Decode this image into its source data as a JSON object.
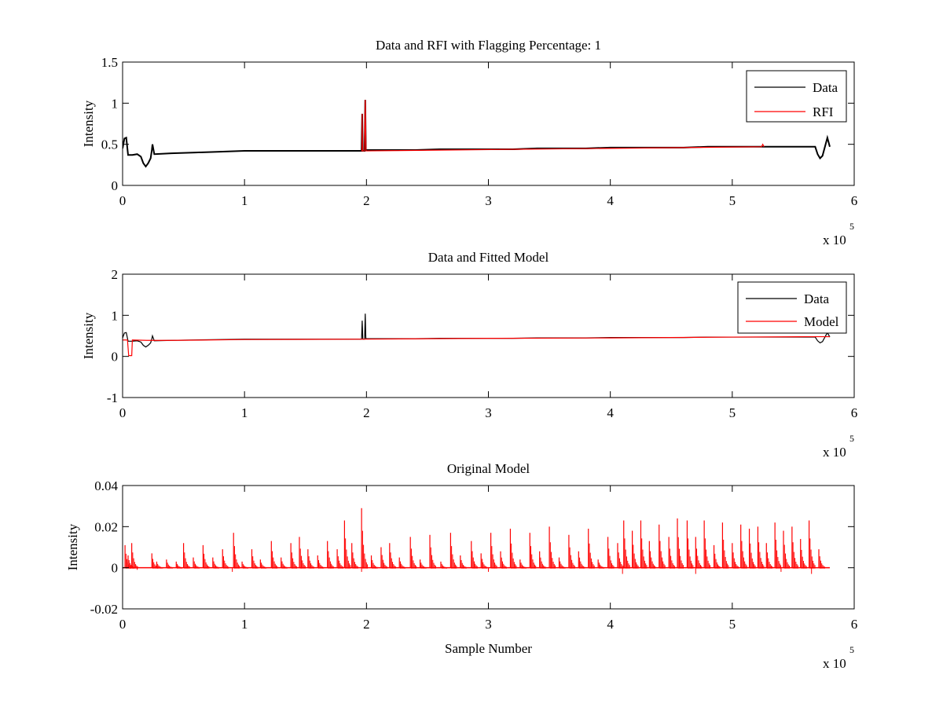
{
  "colors": {
    "data": "#000000",
    "rfi": "#ff0000",
    "model": "#ff0000",
    "axes": "#000000",
    "background": "#ffffff"
  },
  "chart_data": [
    {
      "type": "line",
      "title": "Data and RFI with Flagging Percentage: 1",
      "xlabel": "",
      "ylabel": "Intensity",
      "xlim": [
        0,
        600000
      ],
      "ylim": [
        0,
        1.5
      ],
      "x_exponent_label": "x 10",
      "x_exponent_power": "5",
      "xticks": [
        0,
        100000,
        200000,
        300000,
        400000,
        500000,
        600000
      ],
      "xticklabels": [
        "0",
        "1",
        "2",
        "3",
        "4",
        "5",
        "6"
      ],
      "yticks": [
        0,
        0.5,
        1,
        1.5
      ],
      "yticklabels": [
        "0",
        "0.5",
        "1",
        "1.5"
      ],
      "legend": {
        "placement": "top-right",
        "entries": [
          "Data",
          "RFI"
        ]
      },
      "grid": false,
      "series": [
        {
          "name": "Data",
          "color": "#000000",
          "points": [
            [
              0,
              0.45
            ],
            [
              1500,
              0.57
            ],
            [
              3000,
              0.58
            ],
            [
              4500,
              0.37
            ],
            [
              8000,
              0.37
            ],
            [
              12000,
              0.38
            ],
            [
              15000,
              0.35
            ],
            [
              17000,
              0.27
            ],
            [
              19000,
              0.23
            ],
            [
              21000,
              0.27
            ],
            [
              23000,
              0.33
            ],
            [
              24000,
              0.43
            ],
            [
              24500,
              0.5
            ],
            [
              26000,
              0.38
            ],
            [
              40000,
              0.39
            ],
            [
              60000,
              0.4
            ],
            [
              80000,
              0.41
            ],
            [
              100000,
              0.42
            ],
            [
              120000,
              0.42
            ],
            [
              140000,
              0.42
            ],
            [
              160000,
              0.42
            ],
            [
              180000,
              0.42
            ],
            [
              196000,
              0.42
            ],
            [
              196500,
              0.87
            ],
            [
              197000,
              0.42
            ],
            [
              198500,
              0.42
            ],
            [
              199000,
              1.04
            ],
            [
              199500,
              0.43
            ],
            [
              220000,
              0.43
            ],
            [
              240000,
              0.43
            ],
            [
              260000,
              0.44
            ],
            [
              280000,
              0.44
            ],
            [
              300000,
              0.44
            ],
            [
              320000,
              0.44
            ],
            [
              340000,
              0.45
            ],
            [
              360000,
              0.45
            ],
            [
              380000,
              0.45
            ],
            [
              400000,
              0.46
            ],
            [
              420000,
              0.46
            ],
            [
              440000,
              0.46
            ],
            [
              460000,
              0.46
            ],
            [
              480000,
              0.47
            ],
            [
              500000,
              0.47
            ],
            [
              520000,
              0.47
            ],
            [
              540000,
              0.47
            ],
            [
              560000,
              0.47
            ],
            [
              568000,
              0.47
            ],
            [
              570000,
              0.38
            ],
            [
              572000,
              0.33
            ],
            [
              574000,
              0.36
            ],
            [
              576000,
              0.47
            ],
            [
              578000,
              0.58
            ],
            [
              580000,
              0.47
            ]
          ]
        },
        {
          "name": "RFI",
          "color": "#ff0000",
          "points": [
            [
              195800,
              0.42
            ],
            [
              196300,
              0.42
            ],
            [
              196500,
              0.87
            ],
            [
              196700,
              0.42
            ],
            [
              198300,
              0.42
            ],
            [
              199000,
              1.04
            ],
            [
              199600,
              0.42
            ],
            [
              200000,
              0.42
            ],
            [
              524000,
              0.47
            ],
            [
              525000,
              0.5
            ],
            [
              526000,
              0.47
            ]
          ]
        }
      ]
    },
    {
      "type": "line",
      "title": "Data and Fitted Model",
      "xlabel": "",
      "ylabel": "Intensity",
      "xlim": [
        0,
        600000
      ],
      "ylim": [
        -1,
        2
      ],
      "x_exponent_label": "x 10",
      "x_exponent_power": "5",
      "xticks": [
        0,
        100000,
        200000,
        300000,
        400000,
        500000,
        600000
      ],
      "xticklabels": [
        "0",
        "1",
        "2",
        "3",
        "4",
        "5",
        "6"
      ],
      "yticks": [
        -1,
        0,
        1,
        2
      ],
      "yticklabels": [
        "-1",
        "0",
        "1",
        "2"
      ],
      "legend": {
        "placement": "top-right",
        "entries": [
          "Data",
          "Model"
        ]
      },
      "grid": false,
      "series": [
        {
          "name": "Data",
          "color": "#000000",
          "points": [
            [
              0,
              0.45
            ],
            [
              1500,
              0.57
            ],
            [
              3000,
              0.58
            ],
            [
              4500,
              0.37
            ],
            [
              8000,
              0.37
            ],
            [
              12000,
              0.38
            ],
            [
              15000,
              0.35
            ],
            [
              17000,
              0.27
            ],
            [
              19000,
              0.23
            ],
            [
              21000,
              0.27
            ],
            [
              23000,
              0.33
            ],
            [
              24000,
              0.43
            ],
            [
              24500,
              0.5
            ],
            [
              26000,
              0.38
            ],
            [
              40000,
              0.39
            ],
            [
              60000,
              0.4
            ],
            [
              80000,
              0.41
            ],
            [
              100000,
              0.42
            ],
            [
              120000,
              0.42
            ],
            [
              140000,
              0.42
            ],
            [
              160000,
              0.42
            ],
            [
              180000,
              0.42
            ],
            [
              196000,
              0.42
            ],
            [
              196500,
              0.87
            ],
            [
              197000,
              0.42
            ],
            [
              198500,
              0.42
            ],
            [
              199000,
              1.04
            ],
            [
              199500,
              0.43
            ],
            [
              220000,
              0.43
            ],
            [
              240000,
              0.43
            ],
            [
              260000,
              0.44
            ],
            [
              280000,
              0.44
            ],
            [
              300000,
              0.44
            ],
            [
              320000,
              0.44
            ],
            [
              340000,
              0.45
            ],
            [
              360000,
              0.45
            ],
            [
              380000,
              0.45
            ],
            [
              400000,
              0.46
            ],
            [
              420000,
              0.46
            ],
            [
              440000,
              0.46
            ],
            [
              460000,
              0.46
            ],
            [
              480000,
              0.47
            ],
            [
              500000,
              0.47
            ],
            [
              520000,
              0.47
            ],
            [
              540000,
              0.47
            ],
            [
              560000,
              0.47
            ],
            [
              568000,
              0.47
            ],
            [
              570000,
              0.38
            ],
            [
              572000,
              0.33
            ],
            [
              574000,
              0.36
            ],
            [
              576000,
              0.47
            ],
            [
              578000,
              0.58
            ],
            [
              580000,
              0.47
            ]
          ]
        },
        {
          "name": "Model",
          "color": "#ff0000",
          "points": [
            [
              0,
              0.4
            ],
            [
              3000,
              0.4
            ],
            [
              4000,
              0.4
            ],
            [
              5000,
              0.02
            ],
            [
              7500,
              0.02
            ],
            [
              8000,
              0.4
            ],
            [
              20000,
              0.39
            ],
            [
              40000,
              0.39
            ],
            [
              100000,
              0.41
            ],
            [
              200000,
              0.42
            ],
            [
              300000,
              0.44
            ],
            [
              400000,
              0.45
            ],
            [
              500000,
              0.47
            ],
            [
              560000,
              0.48
            ],
            [
              580000,
              0.48
            ]
          ]
        }
      ]
    },
    {
      "type": "line",
      "title": "Original Model",
      "xlabel": "Sample Number",
      "ylabel": "Intensity",
      "xlim": [
        0,
        600000
      ],
      "ylim": [
        -0.02,
        0.04
      ],
      "x_exponent_label": "x 10",
      "x_exponent_power": "5",
      "xticks": [
        0,
        100000,
        200000,
        300000,
        400000,
        500000,
        600000
      ],
      "xticklabels": [
        "0",
        "1",
        "2",
        "3",
        "4",
        "5",
        "6"
      ],
      "yticks": [
        -0.02,
        0,
        0.02,
        0.04
      ],
      "yticklabels": [
        "-0.02",
        "0",
        "0.02",
        "0.04"
      ],
      "legend": null,
      "grid": false,
      "series": [
        {
          "color": "#ff0000",
          "x_start": 0,
          "x_end": 580000,
          "baseline": 0,
          "spikes": [
            [
              2000,
              0.011
            ],
            [
              4500,
              0.006
            ],
            [
              7500,
              0.012
            ],
            [
              24000,
              0.007
            ],
            [
              28000,
              0.003
            ],
            [
              36000,
              0.004
            ],
            [
              44000,
              0.003
            ],
            [
              50000,
              0.012
            ],
            [
              58000,
              0.005
            ],
            [
              66000,
              0.011
            ],
            [
              74000,
              0.005
            ],
            [
              82000,
              0.009
            ],
            [
              91000,
              0.017
            ],
            [
              98000,
              0.003
            ],
            [
              106000,
              0.009
            ],
            [
              113000,
              0.004
            ],
            [
              122000,
              0.013
            ],
            [
              130000,
              0.005
            ],
            [
              138000,
              0.012
            ],
            [
              145000,
              0.015
            ],
            [
              152000,
              0.009
            ],
            [
              160000,
              0.006
            ],
            [
              168000,
              0.013
            ],
            [
              176000,
              0.009
            ],
            [
              182000,
              0.023
            ],
            [
              188000,
              0.012
            ],
            [
              196000,
              0.029
            ],
            [
              204000,
              0.006
            ],
            [
              212000,
              0.01
            ],
            [
              219000,
              0.012
            ],
            [
              227000,
              0.005
            ],
            [
              236000,
              0.015
            ],
            [
              244000,
              0.004
            ],
            [
              252000,
              0.016
            ],
            [
              261000,
              0.003
            ],
            [
              269000,
              0.017
            ],
            [
              277000,
              0.006
            ],
            [
              286000,
              0.013
            ],
            [
              294000,
              0.007
            ],
            [
              302000,
              0.017
            ],
            [
              310000,
              0.008
            ],
            [
              318000,
              0.019
            ],
            [
              326000,
              0.004
            ],
            [
              334000,
              0.017
            ],
            [
              342000,
              0.008
            ],
            [
              350000,
              0.02
            ],
            [
              358000,
              0.005
            ],
            [
              366000,
              0.016
            ],
            [
              374000,
              0.008
            ],
            [
              382000,
              0.019
            ],
            [
              390000,
              0.004
            ],
            [
              398000,
              0.015
            ],
            [
              406000,
              0.012
            ],
            [
              411000,
              0.023
            ],
            [
              418000,
              0.018
            ],
            [
              425000,
              0.023
            ],
            [
              432000,
              0.013
            ],
            [
              440000,
              0.021
            ],
            [
              448000,
              0.015
            ],
            [
              455000,
              0.024
            ],
            [
              463000,
              0.023
            ],
            [
              470000,
              0.015
            ],
            [
              477000,
              0.023
            ],
            [
              485000,
              0.011
            ],
            [
              492000,
              0.022
            ],
            [
              500000,
              0.012
            ],
            [
              507000,
              0.021
            ],
            [
              514000,
              0.019
            ],
            [
              521000,
              0.02
            ],
            [
              528000,
              0.012
            ],
            [
              535000,
              0.022
            ],
            [
              542000,
              0.018
            ],
            [
              549000,
              0.02
            ],
            [
              556000,
              0.014
            ],
            [
              563000,
              0.023
            ],
            [
              571000,
              0.009
            ]
          ],
          "neg_dips": [
            [
              12000,
              -0.001
            ],
            [
              90000,
              -0.002
            ],
            [
              196000,
              -0.002
            ],
            [
              300000,
              -0.002
            ],
            [
              410000,
              -0.003
            ],
            [
              470000,
              -0.003
            ],
            [
              540000,
              -0.002
            ],
            [
              565000,
              -0.003
            ]
          ]
        }
      ]
    }
  ]
}
